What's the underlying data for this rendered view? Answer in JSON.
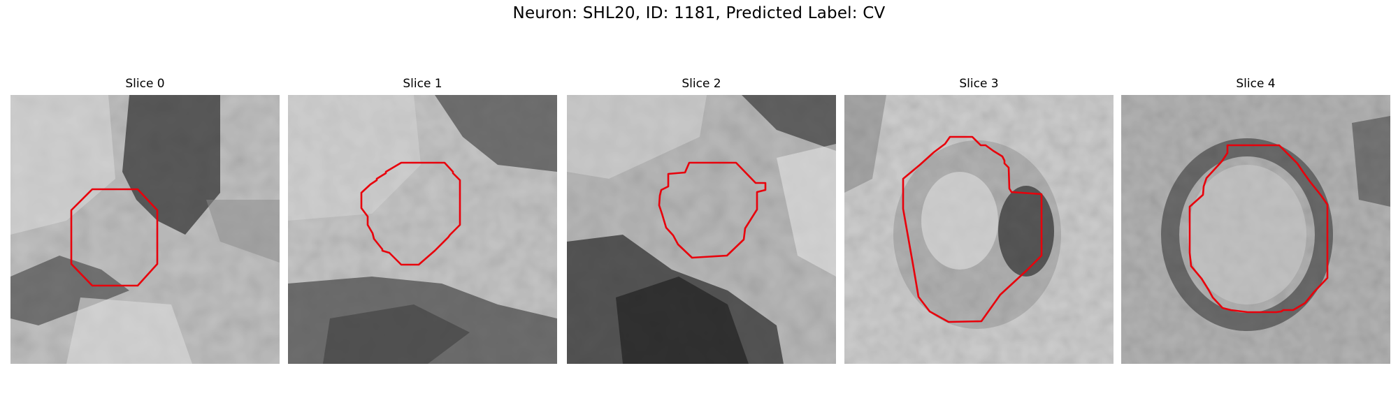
{
  "figure": {
    "title": "Neuron: SHL20, ID: 1181, Predicted Label: CV",
    "contour_color": "#e8000b"
  },
  "panels": [
    {
      "title": "Slice 0"
    },
    {
      "title": "Slice 1"
    },
    {
      "title": "Slice 2"
    },
    {
      "title": "Slice 3"
    },
    {
      "title": "Slice 4"
    }
  ]
}
